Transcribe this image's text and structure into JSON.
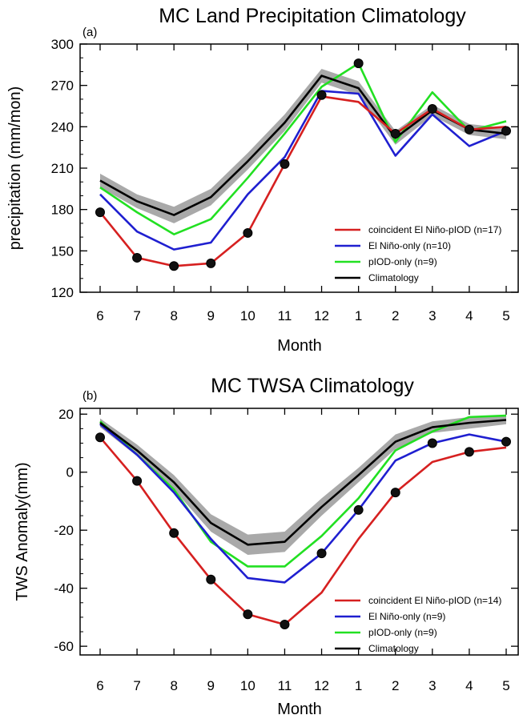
{
  "chart_data": [
    {
      "type": "line",
      "panel_label": "(a)",
      "title": "MC Land Precipitation Climatology",
      "xlabel": "Month",
      "ylabel": "precipitation (mm/mon)",
      "categories": [
        "6",
        "7",
        "8",
        "9",
        "10",
        "11",
        "12",
        "1",
        "2",
        "3",
        "4",
        "5"
      ],
      "ylim": [
        120,
        300
      ],
      "yticks": [
        120,
        150,
        180,
        210,
        240,
        270,
        300
      ],
      "grid": false,
      "legend_position": "lower-right",
      "series": [
        {
          "name": "coincident El Niño-pIOD (n=17)",
          "color": "#d62020",
          "markers": true,
          "values": [
            178,
            145,
            139,
            141,
            163,
            213,
            262,
            258,
            235,
            253,
            238,
            240
          ]
        },
        {
          "name": "El Niño-only (n=10)",
          "color": "#1f1fd0",
          "markers": false,
          "values": [
            191,
            164,
            151,
            156,
            191,
            218,
            266,
            264,
            219,
            249,
            226,
            237
          ]
        },
        {
          "name": "pIOD-only (n=9)",
          "color": "#22e022",
          "markers": false,
          "values": [
            196,
            178,
            162,
            173,
            203,
            235,
            269,
            286,
            229,
            265,
            237,
            244
          ]
        },
        {
          "name": "Climatology",
          "color": "#000000",
          "markers": false,
          "values": [
            201,
            186,
            176,
            189,
            215,
            243,
            277,
            268,
            232,
            252,
            238,
            235
          ],
          "spread": [
            5,
            5,
            6,
            6,
            6,
            6,
            5,
            5,
            5,
            4,
            4,
            4
          ]
        }
      ],
      "black_dots": [
        178,
        145,
        139,
        141,
        163,
        213,
        263,
        286,
        235,
        253,
        238,
        237
      ]
    },
    {
      "type": "line",
      "panel_label": "(b)",
      "title": "MC TWSA Climatology",
      "xlabel": "Month",
      "ylabel": "TWS Anomaly(mm)",
      "categories": [
        "6",
        "7",
        "8",
        "9",
        "10",
        "11",
        "12",
        "1",
        "2",
        "3",
        "4",
        "5"
      ],
      "ylim": [
        -63,
        22
      ],
      "yticks": [
        -60,
        -40,
        -20,
        0,
        20
      ],
      "grid": false,
      "legend_position": "lower-right",
      "series": [
        {
          "name": "coincident El Niño-pIOD (n=14)",
          "color": "#d62020",
          "markers": true,
          "values": [
            12,
            -3,
            -21,
            -37,
            -49,
            -52.5,
            -41.5,
            -23,
            -7,
            3.5,
            7,
            8.5
          ]
        },
        {
          "name": "El Niño-only (n=9)",
          "color": "#1f1fd0",
          "markers": false,
          "values": [
            16.5,
            6,
            -7,
            -23,
            -36.5,
            -38,
            -28,
            -13,
            4,
            10,
            13,
            10.5
          ]
        },
        {
          "name": "pIOD-only (n=9)",
          "color": "#22e022",
          "markers": false,
          "values": [
            17.5,
            6,
            -6,
            -24,
            -32.5,
            -32.5,
            -22,
            -9,
            7.5,
            14,
            19,
            19.5
          ]
        },
        {
          "name": "Climatology",
          "color": "#000000",
          "markers": false,
          "values": [
            17,
            7.5,
            -3.5,
            -17.5,
            -25,
            -24,
            -12,
            -1,
            10.5,
            15.5,
            17,
            18
          ],
          "spread": [
            1.5,
            2,
            2.5,
            3,
            3.5,
            3.5,
            3,
            2.5,
            2.5,
            2,
            2,
            1.5
          ]
        }
      ],
      "black_dots": [
        12,
        -3,
        -21,
        -37,
        -49,
        -52.5,
        -28,
        -13,
        -7,
        10,
        7,
        10.5
      ]
    }
  ]
}
